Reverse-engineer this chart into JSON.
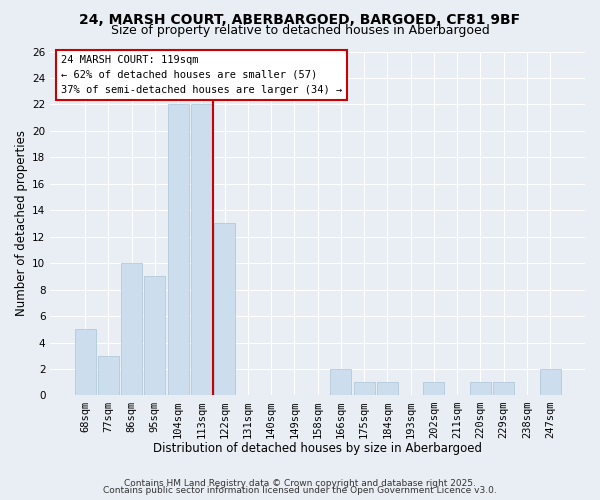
{
  "title": "24, MARSH COURT, ABERBARGOED, BARGOED, CF81 9BF",
  "subtitle": "Size of property relative to detached houses in Aberbargoed",
  "xlabel": "Distribution of detached houses by size in Aberbargoed",
  "ylabel": "Number of detached properties",
  "bar_color": "#ccdded",
  "bar_edge_color": "#aac4d8",
  "bin_labels": [
    "68sqm",
    "77sqm",
    "86sqm",
    "95sqm",
    "104sqm",
    "113sqm",
    "122sqm",
    "131sqm",
    "140sqm",
    "149sqm",
    "158sqm",
    "166sqm",
    "175sqm",
    "184sqm",
    "193sqm",
    "202sqm",
    "211sqm",
    "220sqm",
    "229sqm",
    "238sqm",
    "247sqm"
  ],
  "bar_heights": [
    5,
    3,
    10,
    9,
    22,
    22,
    13,
    0,
    0,
    0,
    0,
    2,
    1,
    1,
    0,
    1,
    0,
    1,
    1,
    0,
    2
  ],
  "ylim": [
    0,
    26
  ],
  "yticks": [
    0,
    2,
    4,
    6,
    8,
    10,
    12,
    14,
    16,
    18,
    20,
    22,
    24,
    26
  ],
  "vline_x": 5.5,
  "vline_color": "#cc0000",
  "annotation_title": "24 MARSH COURT: 119sqm",
  "annotation_line1": "← 62% of detached houses are smaller (57)",
  "annotation_line2": "37% of semi-detached houses are larger (34) →",
  "annotation_box_facecolor": "#ffffff",
  "annotation_box_edgecolor": "#cc0000",
  "footer1": "Contains HM Land Registry data © Crown copyright and database right 2025.",
  "footer2": "Contains public sector information licensed under the Open Government Licence v3.0.",
  "fig_facecolor": "#e8eef4",
  "plot_facecolor": "#e8eef4",
  "grid_color": "#ffffff",
  "title_fontsize": 10,
  "subtitle_fontsize": 9,
  "axis_label_fontsize": 8.5,
  "tick_fontsize": 7.5,
  "annotation_fontsize": 7.5,
  "footer_fontsize": 6.5
}
